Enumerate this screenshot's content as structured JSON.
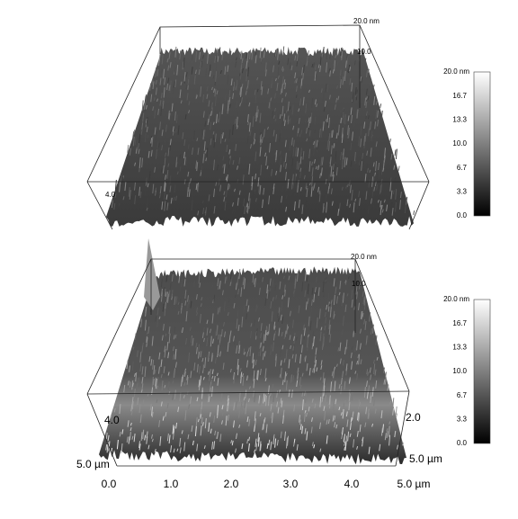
{
  "panels": [
    {
      "z_label": "20.0 nm",
      "z_mid": "10.0",
      "side_label": "4.0",
      "colorbar": {
        "unit_label": "20.0 nm",
        "ticks": [
          "16.7",
          "13.3",
          "10.0",
          "6.7",
          "3.3",
          "0.0"
        ]
      }
    },
    {
      "z_label": "20.0 nm",
      "z_mid": "10.0",
      "side_label": "4.0",
      "right_label": "2.0",
      "y_label_left": "5.0 µm",
      "y_label_right": "5.0 µm",
      "x_ticks": [
        "0.0",
        "1.0",
        "2.0",
        "3.0",
        "4.0",
        "5.0 µm"
      ],
      "colorbar": {
        "unit_label": "20.0 nm",
        "ticks": [
          "16.7",
          "13.3",
          "10.0",
          "6.7",
          "3.3",
          "0.0"
        ]
      }
    }
  ]
}
